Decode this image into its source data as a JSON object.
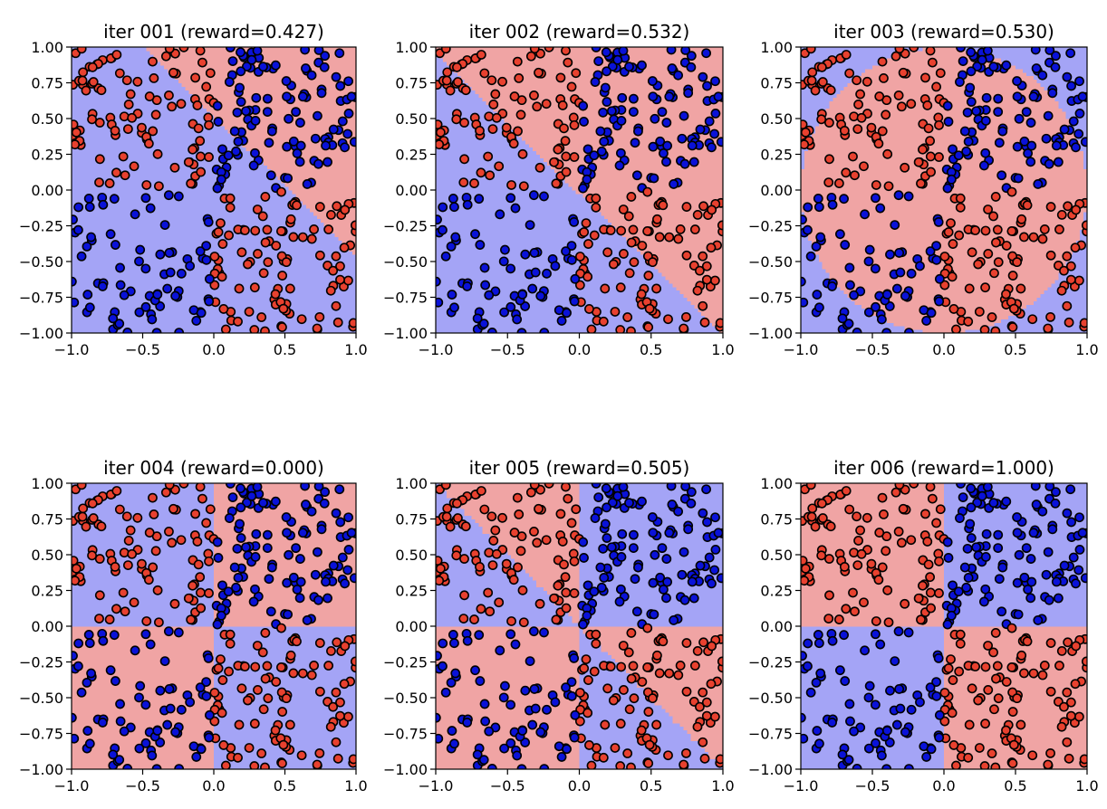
{
  "colors": {
    "class_red_point": "#e8412f",
    "class_blue_point": "#0a12d8",
    "region_red": "#f0a4a4",
    "region_blue": "#a4a4f6",
    "point_edge": "#000000"
  },
  "chart_data": [
    {
      "type": "scatter",
      "title": "iter 001 (reward=0.427)",
      "xlim": [
        -1,
        1
      ],
      "ylim": [
        -1,
        1
      ],
      "xticks": [
        "−1.0",
        "−0.5",
        "0.0",
        "0.5",
        "1.0"
      ],
      "yticks": [
        "−1.00",
        "−0.75",
        "−0.50",
        "−0.25",
        "0.00",
        "0.25",
        "0.50",
        "0.75",
        "1.00"
      ],
      "decision_region": "linear boundary from top (x≈-0.5,y=1.0) down to right edge (x=1.0,y≈-0.45); red upper-right, blue lower-left"
    },
    {
      "type": "scatter",
      "title": "iter 002 (reward=0.532)",
      "xlim": [
        -1,
        1
      ],
      "ylim": [
        -1,
        1
      ],
      "xticks": [
        "−1.0",
        "−0.5",
        "0.0",
        "0.5",
        "1.0"
      ],
      "yticks": [
        "−1.00",
        "−0.75",
        "−0.50",
        "−0.25",
        "0.00",
        "0.25",
        "0.50",
        "0.75",
        "1.00"
      ],
      "decision_region": "diagonal boundary from top-left (-1,0.95) to bottom-right (1,-1); red upper-right, blue lower-left"
    },
    {
      "type": "scatter",
      "title": "iter 003 (reward=0.530)",
      "xlim": [
        -1,
        1
      ],
      "ylim": [
        -1,
        1
      ],
      "xticks": [
        "−1.0",
        "−0.5",
        "0.0",
        "0.5",
        "1.0"
      ],
      "yticks": [
        "−1.00",
        "−0.75",
        "−0.50",
        "−0.25",
        "0.00",
        "0.25",
        "0.50",
        "0.75",
        "1.00"
      ],
      "decision_region": "circular red region centered near origin, radius ≈1.0; blue corners"
    },
    {
      "type": "scatter",
      "title": "iter 004 (reward=0.000)",
      "xlim": [
        -1,
        1
      ],
      "ylim": [
        -1,
        1
      ],
      "xticks": [
        "−1.0",
        "−0.5",
        "0.0",
        "0.5",
        "1.0"
      ],
      "yticks": [
        "−1.00",
        "−0.75",
        "−0.50",
        "−0.25",
        "0.00",
        "0.25",
        "0.50",
        "0.75",
        "1.00"
      ],
      "decision_region": "quadrants: blue top-left, red top-right, red bottom-left, blue bottom-right"
    },
    {
      "type": "scatter",
      "title": "iter 005 (reward=0.505)",
      "xlim": [
        -1,
        1
      ],
      "ylim": [
        -1,
        1
      ],
      "xticks": [
        "−1.0",
        "−0.5",
        "0.0",
        "0.5",
        "1.0"
      ],
      "yticks": [
        "−1.00",
        "−0.75",
        "−0.50",
        "−0.25",
        "0.00",
        "0.25",
        "0.50",
        "0.75",
        "1.00"
      ],
      "decision_region": "quadrant-like: top-left red wedge above diagonal, blue top-right, red bottom-left, bottom-right split by diagonal (red above, blue below)"
    },
    {
      "type": "scatter",
      "title": "iter 006 (reward=1.000)",
      "xlim": [
        -1,
        1
      ],
      "ylim": [
        -1,
        1
      ],
      "xticks": [
        "−1.0",
        "−0.5",
        "0.0",
        "0.5",
        "1.0"
      ],
      "yticks": [
        "−1.00",
        "−0.75",
        "−0.50",
        "−0.25",
        "0.00",
        "0.25",
        "0.50",
        "0.75",
        "1.00"
      ],
      "decision_region": "XOR quadrants: red top-left, blue top-right, blue bottom-left, red bottom-right"
    }
  ]
}
